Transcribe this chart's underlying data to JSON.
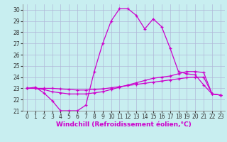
{
  "background_color": "#c8eef0",
  "grid_color": "#b0b8d8",
  "line_color": "#cc00cc",
  "xlabel": "Windchill (Refroidissement éolien,°C)",
  "xlabel_fontsize": 6.5,
  "tick_fontsize": 5.5,
  "xlim": [
    -0.5,
    23.5
  ],
  "ylim": [
    21,
    30.5
  ],
  "yticks": [
    21,
    22,
    23,
    24,
    25,
    26,
    27,
    28,
    29,
    30
  ],
  "xticks": [
    0,
    1,
    2,
    3,
    4,
    5,
    6,
    7,
    8,
    9,
    10,
    11,
    12,
    13,
    14,
    15,
    16,
    17,
    18,
    19,
    20,
    21,
    22,
    23
  ],
  "series1_x": [
    0,
    1,
    2,
    3,
    4,
    5,
    6,
    7,
    8,
    9,
    10,
    11,
    12,
    13,
    14,
    15,
    16,
    17,
    18,
    19,
    20,
    21,
    22,
    23
  ],
  "series1_y": [
    23.0,
    23.1,
    22.6,
    21.9,
    21.0,
    21.0,
    21.0,
    21.5,
    24.5,
    27.0,
    29.0,
    30.1,
    30.1,
    29.5,
    28.3,
    29.2,
    28.5,
    26.6,
    24.5,
    24.3,
    24.2,
    23.3,
    22.5,
    22.4
  ],
  "series2_x": [
    0,
    1,
    2,
    3,
    4,
    5,
    6,
    7,
    8,
    9,
    10,
    11,
    12,
    13,
    14,
    15,
    16,
    17,
    18,
    19,
    20,
    21,
    22,
    23
  ],
  "series2_y": [
    23.0,
    23.0,
    22.9,
    22.7,
    22.6,
    22.5,
    22.5,
    22.5,
    22.6,
    22.7,
    22.9,
    23.1,
    23.3,
    23.5,
    23.7,
    23.9,
    24.0,
    24.1,
    24.3,
    24.5,
    24.5,
    24.4,
    22.5,
    22.4
  ],
  "series3_x": [
    0,
    1,
    2,
    3,
    4,
    5,
    6,
    7,
    8,
    9,
    10,
    11,
    12,
    13,
    14,
    15,
    16,
    17,
    18,
    19,
    20,
    21,
    22,
    23
  ],
  "series3_y": [
    23.0,
    23.0,
    23.0,
    23.0,
    22.95,
    22.9,
    22.85,
    22.85,
    22.9,
    22.95,
    23.05,
    23.15,
    23.25,
    23.35,
    23.45,
    23.55,
    23.65,
    23.75,
    23.85,
    23.95,
    24.0,
    24.0,
    22.5,
    22.4
  ]
}
